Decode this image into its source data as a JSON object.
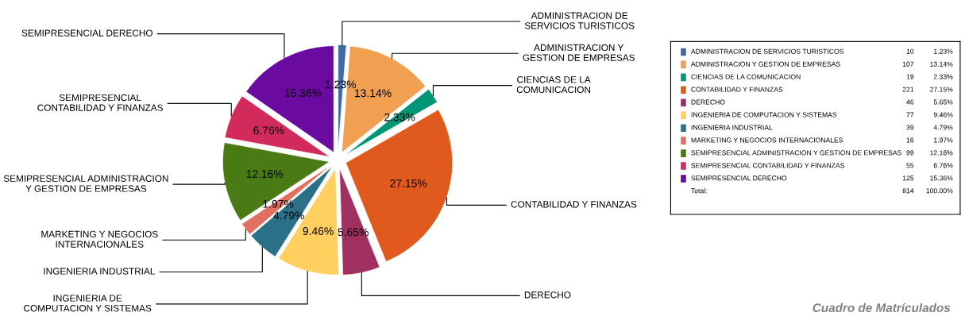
{
  "chart_data": {
    "type": "pie",
    "title": "Cuadro de Matrículados",
    "categories": [
      "ADMINISTRACION DE SERVICIOS TURISTICOS",
      "ADMINISTRACION Y GESTION DE EMPRESAS",
      "CIENCIAS DE LA COMUNICACION",
      "CONTABILIDAD Y FINANZAS",
      "DERECHO",
      "INGENIERIA DE COMPUTACION Y SISTEMAS",
      "INGENIERIA INDUSTRIAL",
      "MARKETING Y NEGOCIOS INTERNACIONALES",
      "SEMIPRESENCIAL ADMINISTRACION Y GESTION DE EMPRESAS",
      "SEMIPRESENCIAL CONTABILIDAD Y FINANZAS",
      "SEMIPRESENCIAL DERECHO"
    ],
    "values": [
      1.23,
      13.14,
      2.33,
      27.15,
      5.65,
      9.46,
      4.79,
      1.97,
      12.16,
      6.76,
      15.36
    ],
    "value_labels": [
      "1.23%",
      "13.14%",
      "2.33%",
      "27.15%",
      "5.65%",
      "9.46%",
      "4.79%",
      "1.97%",
      "12.16%",
      "6.76%",
      "15.36%"
    ],
    "colors": [
      "#3d6aa5",
      "#f0a050",
      "#009676",
      "#e05a1e",
      "#a0305f",
      "#ffcf60",
      "#2a7086",
      "#e07060",
      "#4a7a14",
      "#d22a5a",
      "#6a0aa0"
    ],
    "data_labels": true,
    "legend": "right",
    "annotations": [
      "10",
      "107",
      "19",
      "221",
      "46",
      "77",
      "39",
      "16",
      "99",
      "55",
      "125",
      "Total:",
      "814",
      "100.00%"
    ]
  }
}
